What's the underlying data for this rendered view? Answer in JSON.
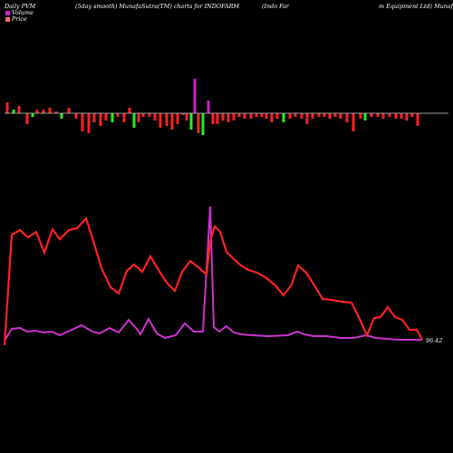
{
  "header": {
    "left": "Daily PVM",
    "center": "(5day smooth) MunafaSutra(TM) charts for INDOFARM",
    "right1": "(Indo  Far",
    "right2": "m Equipment Ltd) Munaf"
  },
  "legend": {
    "volume_label": "Volume",
    "price_label": "Price",
    "volume_color": "#cc22cc",
    "price_color": "#ff6666"
  },
  "chart_data": {
    "type": "line",
    "last_price_label": "96.42",
    "colors": {
      "price_line": "#ff2222",
      "volume_line": "#cc33cc",
      "up_bar": "#22ee22",
      "down_bar": "#ff2222",
      "neutral_bar": "#cc22cc",
      "baseline": "#cccccc"
    },
    "series": [
      {
        "values": [
          [
            5,
            381
          ],
          [
            13,
            259
          ],
          [
            22,
            254
          ],
          [
            31,
            262
          ],
          [
            40,
            256
          ],
          [
            49,
            279
          ],
          [
            58,
            253
          ],
          [
            66,
            264
          ],
          [
            76,
            254
          ],
          [
            85,
            252
          ],
          [
            95,
            241
          ],
          [
            103,
            266
          ],
          [
            112,
            296
          ],
          [
            122,
            317
          ],
          [
            131,
            324
          ],
          [
            140,
            299
          ],
          [
            148,
            292
          ],
          [
            157,
            300
          ],
          [
            166,
            283
          ],
          [
            175,
            298
          ],
          [
            184,
            312
          ],
          [
            193,
            321
          ],
          [
            201,
            300
          ],
          [
            210,
            288
          ],
          [
            219,
            295
          ],
          [
            228,
            303
          ],
          [
            232,
            266
          ],
          [
            237,
            250
          ],
          [
            243,
            256
          ],
          [
            250,
            278
          ],
          [
            258,
            286
          ],
          [
            266,
            293
          ],
          [
            274,
            298
          ],
          [
            284,
            301
          ],
          [
            293,
            306
          ],
          [
            304,
            315
          ],
          [
            313,
            326
          ],
          [
            322,
            314
          ],
          [
            329,
            293
          ],
          [
            338,
            301
          ],
          [
            347,
            315
          ],
          [
            356,
            330
          ],
          [
            366,
            331
          ],
          [
            377,
            333
          ],
          [
            388,
            334
          ],
          [
            396,
            350
          ],
          [
            405,
            370
          ],
          [
            413,
            351
          ],
          [
            420,
            350
          ],
          [
            428,
            339
          ],
          [
            436,
            350
          ],
          [
            444,
            353
          ],
          [
            452,
            364
          ],
          [
            460,
            364
          ],
          [
            466,
            375
          ]
        ]
      },
      {
        "values": [
          [
            5,
            376
          ],
          [
            13,
            363
          ],
          [
            22,
            362
          ],
          [
            30,
            366
          ],
          [
            39,
            365
          ],
          [
            48,
            367
          ],
          [
            57,
            366
          ],
          [
            66,
            370
          ],
          [
            77,
            365
          ],
          [
            90,
            359
          ],
          [
            102,
            366
          ],
          [
            110,
            368
          ],
          [
            121,
            362
          ],
          [
            131,
            367
          ],
          [
            142,
            353
          ],
          [
            151,
            363
          ],
          [
            155,
            369
          ],
          [
            164,
            352
          ],
          [
            173,
            368
          ],
          [
            182,
            373
          ],
          [
            194,
            370
          ],
          [
            204,
            357
          ],
          [
            214,
            366
          ],
          [
            224,
            366
          ],
          [
            232,
            228
          ],
          [
            236,
            361
          ],
          [
            242,
            366
          ],
          [
            250,
            360
          ],
          [
            258,
            367
          ],
          [
            266,
            369
          ],
          [
            278,
            370
          ],
          [
            296,
            371
          ],
          [
            318,
            370
          ],
          [
            328,
            366
          ],
          [
            336,
            369
          ],
          [
            346,
            371
          ],
          [
            360,
            371
          ],
          [
            376,
            373
          ],
          [
            390,
            373
          ],
          [
            404,
            370
          ],
          [
            415,
            373
          ],
          [
            427,
            374
          ],
          [
            440,
            375
          ],
          [
            452,
            375
          ],
          [
            466,
            375
          ]
        ]
      }
    ],
    "volume_bars": [
      [
        8,
        12,
        0
      ],
      [
        15,
        4,
        1
      ],
      [
        21,
        8,
        0
      ],
      [
        30,
        -12,
        0
      ],
      [
        36,
        -4,
        1
      ],
      [
        41,
        4,
        0
      ],
      [
        48,
        4,
        0
      ],
      [
        55,
        6,
        0
      ],
      [
        62,
        2,
        0
      ],
      [
        68,
        -6,
        1
      ],
      [
        76,
        6,
        0
      ],
      [
        84,
        -6,
        0
      ],
      [
        91,
        -20,
        0
      ],
      [
        98,
        -22,
        0
      ],
      [
        104,
        -10,
        0
      ],
      [
        111,
        -14,
        0
      ],
      [
        117,
        -8,
        0
      ],
      [
        124,
        -10,
        1
      ],
      [
        130,
        -4,
        0
      ],
      [
        137,
        -10,
        0
      ],
      [
        143,
        6,
        0
      ],
      [
        148,
        -16,
        1
      ],
      [
        153,
        -10,
        0
      ],
      [
        158,
        -4,
        0
      ],
      [
        165,
        -4,
        0
      ],
      [
        171,
        -8,
        0
      ],
      [
        177,
        -16,
        0
      ],
      [
        184,
        -14,
        0
      ],
      [
        190,
        -18,
        0
      ],
      [
        196,
        -12,
        0
      ],
      [
        202,
        -2,
        0
      ],
      [
        206,
        -8,
        0
      ],
      [
        211,
        -18,
        1
      ],
      [
        215,
        38,
        2
      ],
      [
        219,
        -22,
        0
      ],
      [
        224,
        -24,
        1
      ],
      [
        230,
        14,
        2
      ],
      [
        235,
        -12,
        0
      ],
      [
        240,
        -12,
        0
      ],
      [
        246,
        -8,
        0
      ],
      [
        252,
        -10,
        0
      ],
      [
        258,
        -8,
        0
      ],
      [
        264,
        -4,
        0
      ],
      [
        270,
        -6,
        0
      ],
      [
        277,
        -6,
        0
      ],
      [
        283,
        -4,
        0
      ],
      [
        289,
        -4,
        0
      ],
      [
        294,
        -6,
        0
      ],
      [
        300,
        -10,
        0
      ],
      [
        306,
        -6,
        0
      ],
      [
        313,
        -10,
        1
      ],
      [
        320,
        -6,
        0
      ],
      [
        326,
        -4,
        0
      ],
      [
        333,
        -6,
        0
      ],
      [
        339,
        -12,
        0
      ],
      [
        345,
        -6,
        0
      ],
      [
        352,
        -4,
        0
      ],
      [
        358,
        -4,
        0
      ],
      [
        364,
        -6,
        0
      ],
      [
        370,
        -4,
        0
      ],
      [
        376,
        -6,
        0
      ],
      [
        383,
        -10,
        0
      ],
      [
        390,
        -20,
        0
      ],
      [
        398,
        -6,
        0
      ],
      [
        403,
        -8,
        1
      ],
      [
        410,
        -4,
        0
      ],
      [
        417,
        -4,
        0
      ],
      [
        423,
        -6,
        0
      ],
      [
        430,
        -4,
        0
      ],
      [
        437,
        -6,
        0
      ],
      [
        443,
        -6,
        0
      ],
      [
        449,
        -8,
        0
      ],
      [
        455,
        -4,
        0
      ],
      [
        461,
        -14,
        0
      ]
    ]
  }
}
